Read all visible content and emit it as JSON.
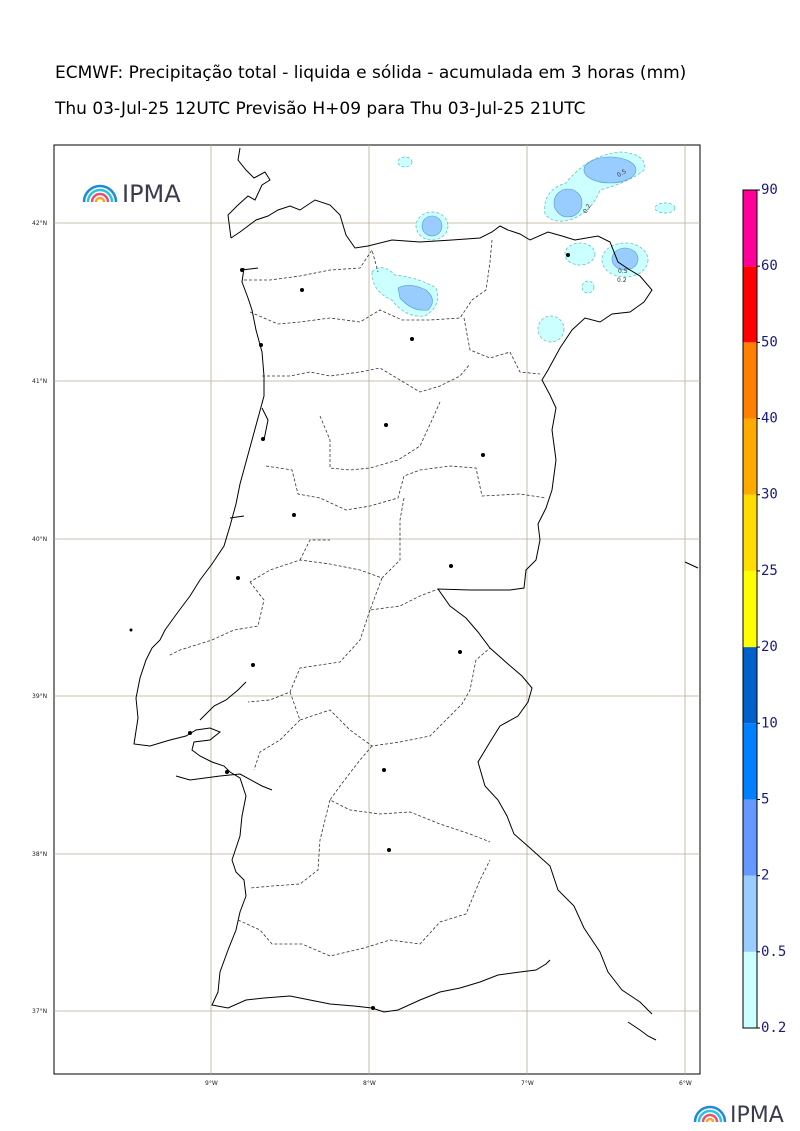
{
  "title": {
    "line1": "ECMWF: Precipitação total - liquida e sólida - acumulada em 3 horas (mm)",
    "line2": "Thu 03-Jul-25 12UTC Previsão H+09 para Thu 03-Jul-25 21UTC"
  },
  "logo": {
    "text": "IPMA",
    "colors": [
      "#f5a623",
      "#e94e77",
      "#1e88e5",
      "#26c6da"
    ]
  },
  "footer_logo": {
    "text": "IPMA"
  },
  "lat_labels": [
    "42°N",
    "41°N",
    "40°N",
    "39°N",
    "38°N",
    "37°N"
  ],
  "lon_labels": [
    "9°W",
    "8°W",
    "7°W",
    "6°W"
  ],
  "colorbar": {
    "levels": [
      "0.2",
      "0.5",
      "2",
      "5",
      "10",
      "20",
      "25",
      "30",
      "40",
      "50",
      "60",
      "90"
    ],
    "colors": [
      "#ccffff",
      "#99ccff",
      "#6699ff",
      "#0080ff",
      "#0060cc",
      "#ffff00",
      "#ffdd00",
      "#ffaa00",
      "#ff8000",
      "#ff0000",
      "#ff0099"
    ]
  },
  "contour_labels": [
    "0.5",
    "0.2",
    "0.5",
    "0.2"
  ]
}
